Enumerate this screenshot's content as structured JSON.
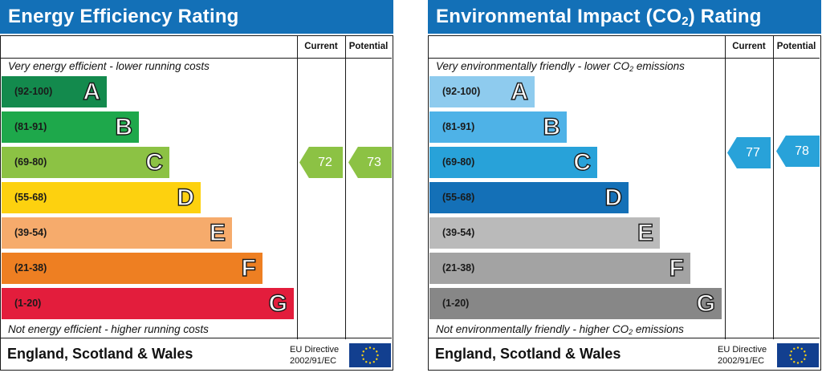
{
  "energy": {
    "title": "Energy Efficiency Rating",
    "col_current": "Current",
    "col_potential": "Potential",
    "note_top": "Very energy efficient - lower running costs",
    "note_bottom": "Not energy efficient - higher running costs",
    "bands": [
      {
        "range": "(92-100)",
        "letter": "A",
        "color": "#138a4d"
      },
      {
        "range": "(81-91)",
        "letter": "B",
        "color": "#1ea84b"
      },
      {
        "range": "(69-80)",
        "letter": "C",
        "color": "#8cc244"
      },
      {
        "range": "(55-68)",
        "letter": "D",
        "color": "#fdd10f"
      },
      {
        "range": "(39-54)",
        "letter": "E",
        "color": "#f6ab6c"
      },
      {
        "range": "(21-38)",
        "letter": "F",
        "color": "#ee7f22"
      },
      {
        "range": "(1-20)",
        "letter": "G",
        "color": "#e31d3c"
      }
    ],
    "current": {
      "value": "72",
      "color": "#8cc244"
    },
    "potential": {
      "value": "73",
      "color": "#8cc244"
    },
    "footer": "England, Scotland & Wales",
    "eu_line1": "EU Directive",
    "eu_line2": "2002/91/EC"
  },
  "environment": {
    "title_main": "Environmental Impact (CO",
    "title_sub": "2",
    "title_end": ") Rating",
    "col_current": "Current",
    "col_potential": "Potential",
    "note_top_main": "Very environmentally friendly - lower CO",
    "note_top_sub": "2",
    "note_top_end": " emissions",
    "note_bottom_main": "Not environmentally friendly - higher CO",
    "note_bottom_sub": "2",
    "note_bottom_end": " emissions",
    "bands": [
      {
        "range": "(92-100)",
        "letter": "A",
        "color": "#8ecbee"
      },
      {
        "range": "(81-91)",
        "letter": "B",
        "color": "#4eb2e7"
      },
      {
        "range": "(69-80)",
        "letter": "C",
        "color": "#28a2d9"
      },
      {
        "range": "(55-68)",
        "letter": "D",
        "color": "#1470b7"
      },
      {
        "range": "(39-54)",
        "letter": "E",
        "color": "#bababa"
      },
      {
        "range": "(21-38)",
        "letter": "F",
        "color": "#a3a3a3"
      },
      {
        "range": "(1-20)",
        "letter": "G",
        "color": "#878787"
      }
    ],
    "current": {
      "value": "77",
      "color": "#28a2d9"
    },
    "potential": {
      "value": "78",
      "color": "#28a2d9"
    },
    "footer": "England, Scotland & Wales",
    "eu_line1": "EU Directive",
    "eu_line2": "2002/91/EC"
  }
}
